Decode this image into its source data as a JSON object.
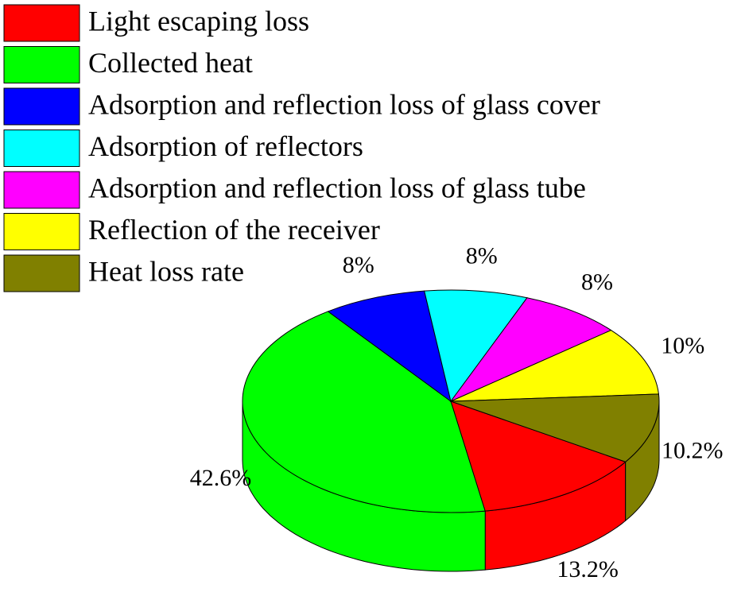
{
  "chart_data": {
    "type": "pie",
    "three_d": true,
    "categories": [
      "Light escaping loss",
      "Collected heat",
      "Adsorption and reflection loss of glass cover",
      "Adsorption of reflectors",
      "Adsorption and reflection loss of glass tube",
      "Reflection of the receiver",
      "Heat loss rate"
    ],
    "values": [
      13.2,
      42.6,
      8,
      8,
      8,
      10,
      10.2
    ],
    "value_labels": [
      "13.2%",
      "42.6%",
      "8%",
      "8%",
      "8%",
      "10%",
      "10.2%"
    ],
    "colors": [
      "#ff0000",
      "#00ff00",
      "#0000ff",
      "#00ffff",
      "#ff00ff",
      "#ffff00",
      "#808000"
    ],
    "legend": "upper left"
  }
}
